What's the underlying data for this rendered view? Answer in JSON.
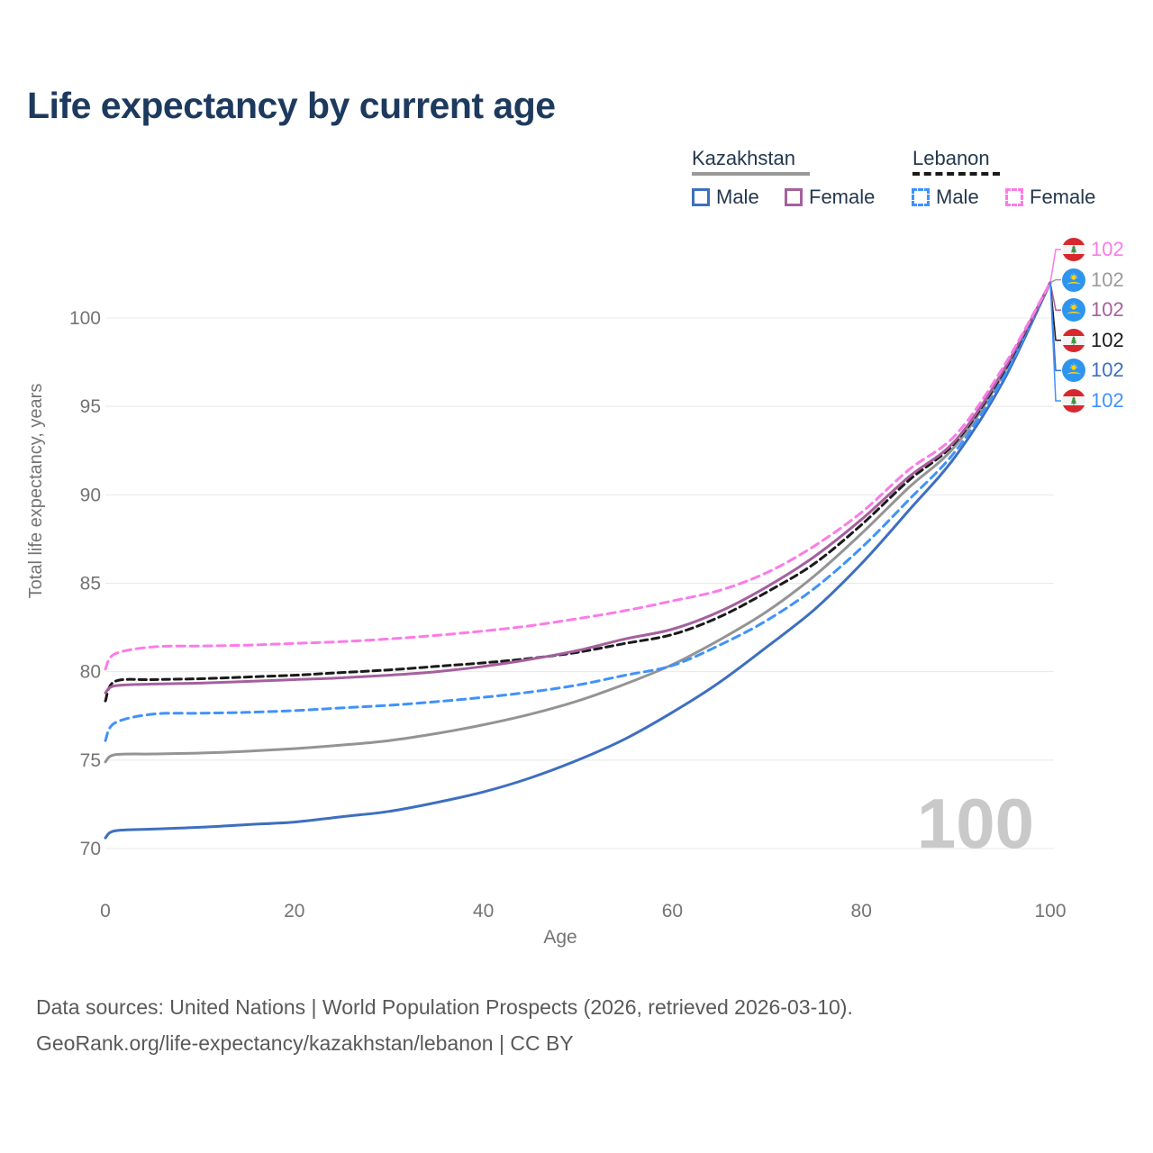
{
  "header": {
    "title": "Life expectancy by current age",
    "title_color": "#1d3a5e"
  },
  "legend": {
    "countries": [
      {
        "name": "Kazakhstan",
        "line_style": "solid",
        "line_color": "#999999"
      },
      {
        "name": "Lebanon",
        "line_style": "dashed",
        "line_color": "#1a1a1a"
      }
    ],
    "items": [
      {
        "country": "Kazakhstan",
        "label": "Male",
        "color": "#3d6fc0",
        "style": "solid"
      },
      {
        "country": "Kazakhstan",
        "label": "Female",
        "color": "#a5609e",
        "style": "solid"
      },
      {
        "country": "Lebanon",
        "label": "Male",
        "color": "#3f92fb",
        "style": "dashed"
      },
      {
        "country": "Lebanon",
        "label": "Female",
        "color": "#fb7be8",
        "style": "dashed"
      }
    ]
  },
  "chart_data": {
    "type": "line",
    "title": "Life expectancy by current age",
    "xlabel": "Age",
    "ylabel": "Total life expectancy, years",
    "x_ticks": [
      0,
      20,
      40,
      60,
      80,
      100
    ],
    "y_ticks": [
      70,
      75,
      80,
      85,
      90,
      95,
      100
    ],
    "xlim": [
      0,
      100
    ],
    "ylim": [
      69,
      103
    ],
    "grid": "horizontal",
    "x": [
      0,
      1,
      5,
      10,
      15,
      20,
      25,
      30,
      35,
      40,
      45,
      50,
      55,
      60,
      65,
      70,
      75,
      80,
      85,
      90,
      95,
      100
    ],
    "series": [
      {
        "name": "Kazakhstan Male",
        "country": "Kazakhstan",
        "sex": "male",
        "style": "solid",
        "color": "#3d6fc0",
        "values": [
          70.6,
          71.0,
          71.1,
          71.2,
          71.35,
          71.5,
          71.8,
          72.1,
          72.6,
          73.2,
          74.0,
          75.0,
          76.2,
          77.7,
          79.4,
          81.4,
          83.5,
          86.1,
          89.1,
          92.2,
          96.4,
          102
        ]
      },
      {
        "name": "Kazakhstan Both sexes",
        "country": "Kazakhstan",
        "sex": "both sexes",
        "style": "solid",
        "color": "#949494",
        "values": [
          74.9,
          75.3,
          75.35,
          75.4,
          75.5,
          75.65,
          75.85,
          76.1,
          76.5,
          77.0,
          77.6,
          78.35,
          79.3,
          80.4,
          81.8,
          83.4,
          85.4,
          87.8,
          90.4,
          92.8,
          96.8,
          102
        ]
      },
      {
        "name": "Lebanon Male",
        "country": "Lebanon",
        "sex": "male",
        "style": "dashed",
        "color": "#3f92fb",
        "values": [
          76.1,
          77.1,
          77.6,
          77.65,
          77.7,
          77.8,
          77.95,
          78.1,
          78.3,
          78.55,
          78.85,
          79.25,
          79.8,
          80.35,
          81.5,
          82.9,
          84.7,
          87.0,
          89.7,
          92.5,
          96.6,
          102
        ]
      },
      {
        "name": "Lebanon Both sexes",
        "country": "Lebanon",
        "sex": "both sexes",
        "style": "dashed",
        "color": "#1a1a1a",
        "values": [
          78.35,
          79.45,
          79.55,
          79.6,
          79.7,
          79.8,
          79.95,
          80.1,
          80.3,
          80.5,
          80.75,
          81.1,
          81.6,
          82.1,
          83.1,
          84.5,
          86.1,
          88.3,
          90.8,
          93.0,
          96.9,
          102
        ]
      },
      {
        "name": "Kazakhstan Female",
        "country": "Kazakhstan",
        "sex": "female",
        "style": "solid",
        "color": "#a5609e",
        "values": [
          78.8,
          79.2,
          79.3,
          79.35,
          79.45,
          79.55,
          79.65,
          79.8,
          80.0,
          80.3,
          80.7,
          81.2,
          81.85,
          82.4,
          83.4,
          84.8,
          86.5,
          88.6,
          91.0,
          93.1,
          97.0,
          102
        ]
      },
      {
        "name": "Lebanon Female",
        "country": "Lebanon",
        "sex": "female",
        "style": "dashed",
        "color": "#fb7be8",
        "values": [
          80.15,
          81.0,
          81.4,
          81.45,
          81.5,
          81.6,
          81.7,
          81.85,
          82.05,
          82.3,
          82.6,
          83.0,
          83.45,
          84.0,
          84.6,
          85.6,
          87.1,
          89.0,
          91.4,
          93.4,
          97.2,
          102
        ]
      }
    ]
  },
  "end_labels": [
    {
      "flag": "lebanon",
      "series": "Lebanon Female",
      "value": "102",
      "color": "#fb7be8"
    },
    {
      "flag": "kazakhstan",
      "series": "Kazakhstan Both sexes",
      "value": "102",
      "color": "#9a9a9a"
    },
    {
      "flag": "kazakhstan",
      "series": "Kazakhstan Female",
      "value": "102",
      "color": "#a5609e"
    },
    {
      "flag": "lebanon",
      "series": "Lebanon Both sexes",
      "value": "102",
      "color": "#1a1a1a"
    },
    {
      "flag": "kazakhstan",
      "series": "Kazakhstan Male",
      "value": "102",
      "color": "#3d6fc0"
    },
    {
      "flag": "lebanon",
      "series": "Lebanon Male",
      "value": "102",
      "color": "#3f92fb"
    }
  ],
  "age_indicator": {
    "text": "100"
  },
  "footer": {
    "line1": "Data sources: United Nations | World Population Prospects (2026, retrieved 2026-03-10).",
    "line2": "GeoRank.org/life-expectancy/kazakhstan/lebanon | CC BY"
  }
}
